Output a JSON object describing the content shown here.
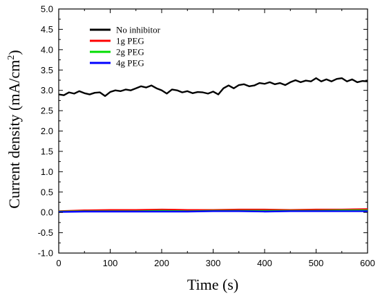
{
  "chart_data": {
    "type": "line",
    "xlabel": "Time (s)",
    "ylabel_main": "Current density (mA/cm",
    "ylabel_sup": "2",
    "ylabel_close": ")",
    "xlim": [
      0,
      600
    ],
    "ylim": [
      -1.0,
      5.0
    ],
    "x_ticks": [
      "0",
      "100",
      "200",
      "300",
      "400",
      "500",
      "600"
    ],
    "y_ticks": [
      "-1.0",
      "-0.5",
      "0.0",
      "0.5",
      "1.0",
      "1.5",
      "2.0",
      "2.5",
      "3.0",
      "3.5",
      "4.0",
      "4.5",
      "5.0"
    ],
    "legend_position": "top-left",
    "series": [
      {
        "name": "No inhibitor",
        "color": "#000000",
        "x": [
          0,
          10,
          20,
          30,
          40,
          50,
          60,
          70,
          80,
          90,
          100,
          110,
          120,
          130,
          140,
          150,
          160,
          170,
          180,
          190,
          200,
          210,
          220,
          230,
          240,
          250,
          260,
          270,
          280,
          290,
          300,
          310,
          320,
          330,
          340,
          350,
          360,
          370,
          380,
          390,
          400,
          410,
          420,
          430,
          440,
          450,
          460,
          470,
          480,
          490,
          500,
          510,
          520,
          530,
          540,
          550,
          560,
          570,
          580,
          590,
          600
        ],
        "y": [
          2.9,
          2.88,
          2.95,
          2.92,
          2.98,
          2.93,
          2.9,
          2.94,
          2.95,
          2.86,
          2.96,
          3.0,
          2.98,
          3.02,
          3.0,
          3.05,
          3.1,
          3.07,
          3.12,
          3.05,
          3.0,
          2.92,
          3.02,
          3.0,
          2.95,
          2.98,
          2.93,
          2.96,
          2.95,
          2.92,
          2.97,
          2.9,
          3.05,
          3.12,
          3.05,
          3.13,
          3.15,
          3.1,
          3.12,
          3.18,
          3.16,
          3.2,
          3.15,
          3.18,
          3.13,
          3.2,
          3.25,
          3.2,
          3.24,
          3.22,
          3.3,
          3.22,
          3.27,
          3.22,
          3.28,
          3.3,
          3.22,
          3.27,
          3.2,
          3.23,
          3.22
        ]
      },
      {
        "name": "1g PEG",
        "color": "#ff0000",
        "x": [
          0,
          50,
          100,
          150,
          200,
          250,
          300,
          350,
          400,
          450,
          500,
          550,
          600
        ],
        "y": [
          0.03,
          0.05,
          0.06,
          0.06,
          0.07,
          0.06,
          0.06,
          0.07,
          0.07,
          0.06,
          0.07,
          0.07,
          0.08
        ]
      },
      {
        "name": "2g PEG",
        "color": "#00dd00",
        "x": [
          0,
          50,
          100,
          150,
          200,
          250,
          300,
          350,
          400,
          450,
          500,
          550,
          600
        ],
        "y": [
          0.02,
          0.03,
          0.03,
          0.03,
          0.04,
          0.03,
          0.04,
          0.04,
          0.04,
          0.04,
          0.04,
          0.05,
          0.05
        ]
      },
      {
        "name": "4g PEG",
        "color": "#0000ff",
        "x": [
          0,
          50,
          100,
          150,
          200,
          250,
          300,
          350,
          400,
          450,
          500,
          550,
          600
        ],
        "y": [
          0.01,
          0.02,
          0.02,
          0.02,
          0.02,
          0.02,
          0.03,
          0.03,
          0.02,
          0.03,
          0.03,
          0.03,
          0.03
        ]
      }
    ]
  }
}
